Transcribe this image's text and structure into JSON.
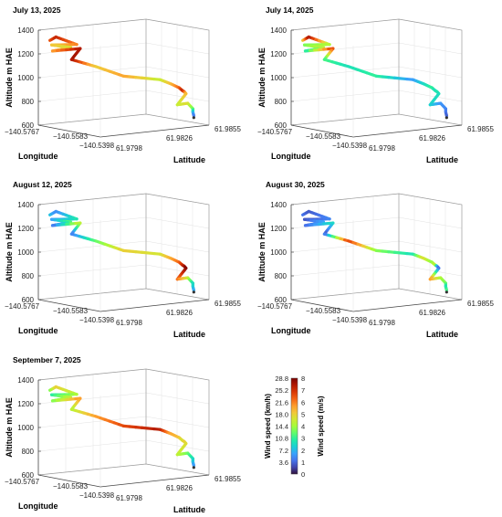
{
  "chart_data": [
    {
      "type": "line",
      "title": "July 13, 2025",
      "xlabel": "Longitude",
      "ylabel": "Latitude",
      "zlabel": "Altitude m HAE",
      "x_ticks": [
        "−140.5767",
        "−140.5583",
        "−140.5398"
      ],
      "y_ticks": [
        "61.9798",
        "61.9826",
        "61.9855"
      ],
      "z_ticks": [
        "600",
        "800",
        "1000",
        "1200",
        "1400"
      ],
      "zlim": [
        600,
        1400
      ],
      "series": [
        {
          "wind_speed_ms": [
            6.4,
            7.2,
            6.0,
            5.2,
            4.6,
            5.6,
            7.4,
            7.6,
            5.0,
            5.6,
            4.4,
            5.2,
            6.2,
            7.2,
            6.6,
            5.4,
            4.4,
            4.8,
            3.6,
            2.2,
            1.2
          ]
        }
      ]
    },
    {
      "type": "line",
      "title": "July 14, 2025",
      "xlabel": "Longitude",
      "ylabel": "Latitude",
      "zlabel": "Altitude m HAE",
      "x_ticks": [
        "−140.5767",
        "−140.5583",
        "−140.5398"
      ],
      "y_ticks": [
        "61.9798",
        "61.9826",
        "61.9855"
      ],
      "z_ticks": [
        "600",
        "800",
        "1000",
        "1200",
        "1400"
      ],
      "zlim": [
        600,
        1400
      ],
      "series": [
        {
          "wind_speed_ms": [
            4.8,
            7.6,
            4.2,
            3.6,
            4.4,
            2.6,
            6.8,
            3.2,
            2.6,
            3.0,
            1.6,
            2.4,
            3.0,
            2.6,
            2.8,
            2.6,
            2.4,
            1.6,
            1.4,
            1.2,
            0.9
          ]
        }
      ]
    },
    {
      "type": "line",
      "title": "August 12, 2025",
      "xlabel": "Longitude",
      "ylabel": "Latitude",
      "zlabel": "Altitude m HAE",
      "x_ticks": [
        "−140.5767",
        "−140.5583",
        "−140.5398"
      ],
      "y_ticks": [
        "61.9798",
        "61.9826",
        "61.9855"
      ],
      "z_ticks": [
        "600",
        "800",
        "1000",
        "1200",
        "1400"
      ],
      "zlim": [
        600,
        1400
      ],
      "series": [
        {
          "wind_speed_ms": [
            2.2,
            1.4,
            2.8,
            1.6,
            3.4,
            1.0,
            4.6,
            1.2,
            3.4,
            5.0,
            4.6,
            5.4,
            6.2,
            7.0,
            7.4,
            8.0,
            6.2,
            4.6,
            2.6,
            2.4,
            1.8
          ]
        }
      ]
    },
    {
      "type": "line",
      "title": "August 30, 2025",
      "xlabel": "Longitude",
      "ylabel": "Latitude",
      "zlabel": "Altitude m HAE",
      "x_ticks": [
        "−140.5767",
        "−140.5583",
        "−140.5398"
      ],
      "y_ticks": [
        "61.9798",
        "61.9826",
        "61.9855"
      ],
      "z_ticks": [
        "600",
        "800",
        "1000",
        "1200",
        "1400"
      ],
      "zlim": [
        600,
        1400
      ],
      "series": [
        {
          "wind_speed_ms": [
            1.2,
            0.8,
            1.4,
            0.7,
            1.8,
            1.0,
            2.6,
            0.8,
            6.8,
            3.8,
            2.6,
            4.8,
            3.8,
            4.4,
            2.2,
            0.8,
            5.8,
            4.2,
            3.6,
            2.6,
            3.2
          ]
        }
      ]
    },
    {
      "type": "line",
      "title": "September 7, 2025",
      "xlabel": "Longitude",
      "ylabel": "Latitude",
      "zlabel": "Altitude m HAE",
      "x_ticks": [
        "−140.5767",
        "−140.5583",
        "−140.5398"
      ],
      "y_ticks": [
        "61.9798",
        "61.9826",
        "61.9855"
      ],
      "z_ticks": [
        "600",
        "800",
        "1000",
        "1200",
        "1400"
      ],
      "zlim": [
        600,
        1400
      ],
      "series": [
        {
          "wind_speed_ms": [
            3.6,
            5.0,
            4.2,
            2.8,
            4.4,
            3.6,
            5.8,
            4.2,
            5.6,
            6.6,
            7.4,
            5.6,
            5.2,
            4.6,
            5.0,
            4.8,
            4.4,
            3.6,
            2.6,
            2.2,
            1.6
          ]
        }
      ]
    }
  ],
  "colorbar": {
    "label_kmh": "Wind speed  (km/h)",
    "label_ms": "Wind speed  (m/s)",
    "kmh_ticks": [
      "28.8",
      "25.2",
      "21.6",
      "18.0",
      "14.4",
      "10.8",
      "7.2",
      "3.6"
    ],
    "ms_ticks": [
      "8",
      "7",
      "6",
      "5",
      "4",
      "3",
      "2",
      "1",
      "0"
    ],
    "range_ms": [
      0,
      8
    ],
    "colormap": [
      "#30123b",
      "#4145ab",
      "#4675ed",
      "#39a2fc",
      "#1bcfd4",
      "#24eca6",
      "#61fc6c",
      "#a4fc3b",
      "#d1e834",
      "#f3c63a",
      "#fe9b2d",
      "#f36315",
      "#d93806",
      "#b11901",
      "#7a0402"
    ]
  }
}
